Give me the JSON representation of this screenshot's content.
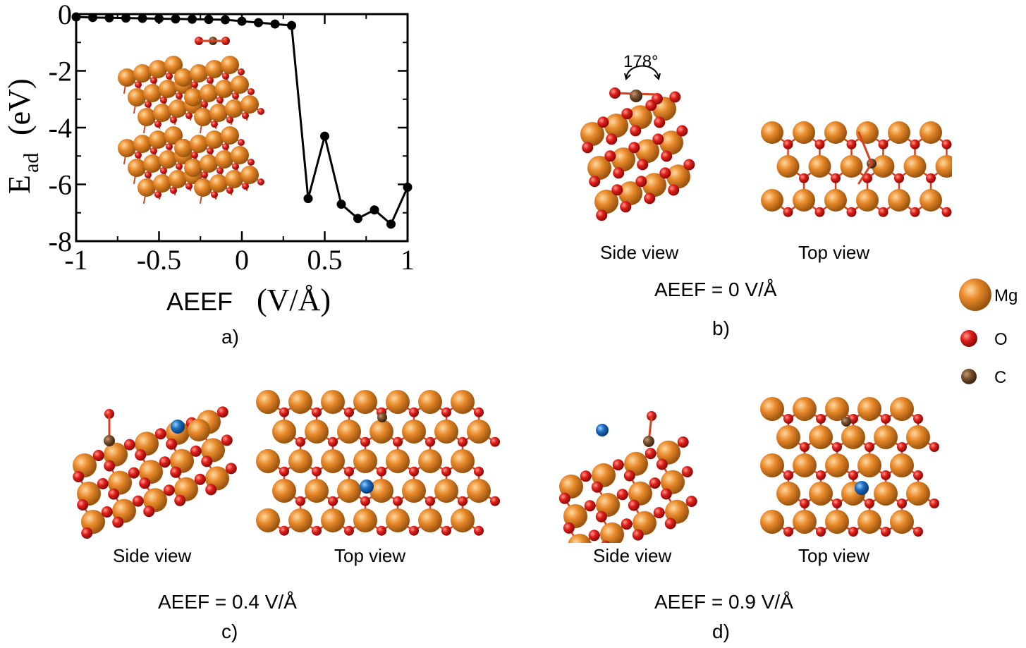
{
  "chart_data": {
    "type": "line",
    "xlabel": "AEEF (V/Å)",
    "ylabel": "E_ad (eV)",
    "ylabel_main": "E",
    "ylabel_sub": "ad",
    "ylabel_unit": "(eV)",
    "xlabel_main": "AEEF",
    "xlabel_unit": "(V/Å)",
    "xlim": [
      -1,
      1
    ],
    "ylim": [
      -8,
      0
    ],
    "x_ticks": [
      -1,
      -0.5,
      0,
      0.5,
      1
    ],
    "x_tick_labels": [
      "-1",
      "-0.5",
      "0",
      "0.5",
      "1"
    ],
    "y_ticks": [
      0,
      -2,
      -4,
      -6,
      -8
    ],
    "y_tick_labels": [
      "0",
      "-2",
      "-4",
      "-6",
      "-8"
    ],
    "grid": false,
    "series": [
      {
        "x": [
          -1.0,
          -0.9,
          -0.8,
          -0.7,
          -0.6,
          -0.5,
          -0.4,
          -0.3,
          -0.2,
          -0.1,
          0.0,
          0.1,
          0.2,
          0.3,
          0.4,
          0.5,
          0.6,
          0.7,
          0.8,
          0.9,
          1.0
        ],
        "y": [
          -0.1,
          -0.12,
          -0.13,
          -0.14,
          -0.15,
          -0.16,
          -0.17,
          -0.18,
          -0.19,
          -0.2,
          -0.25,
          -0.3,
          -0.35,
          -0.4,
          -6.5,
          -4.3,
          -6.7,
          -7.2,
          -6.9,
          -7.4,
          -6.1
        ]
      }
    ]
  },
  "panels": {
    "a": "a)",
    "b": "b)",
    "c": "c)",
    "d": "d)"
  },
  "labels": {
    "b_side": "Side view",
    "b_top": "Top view",
    "b_field": "AEEF = 0 V/Å",
    "angle": "178°",
    "c_side": "Side view",
    "c_top": "Top view",
    "c_field": "AEEF = 0.4 V/Å",
    "d_side": "Side view",
    "d_top": "Top view",
    "d_field": "AEEF = 0.9 V/Å"
  },
  "legend": [
    {
      "label": "Mg",
      "color": "#e8892a"
    },
    {
      "label": "O",
      "color": "#e0201c"
    },
    {
      "label": "C",
      "color": "#7a5230"
    }
  ],
  "colors": {
    "mg": "#e8892a",
    "o": "#e0201c",
    "c": "#7a5230",
    "blue": "#1e6fc0",
    "bond": "#d84020"
  }
}
